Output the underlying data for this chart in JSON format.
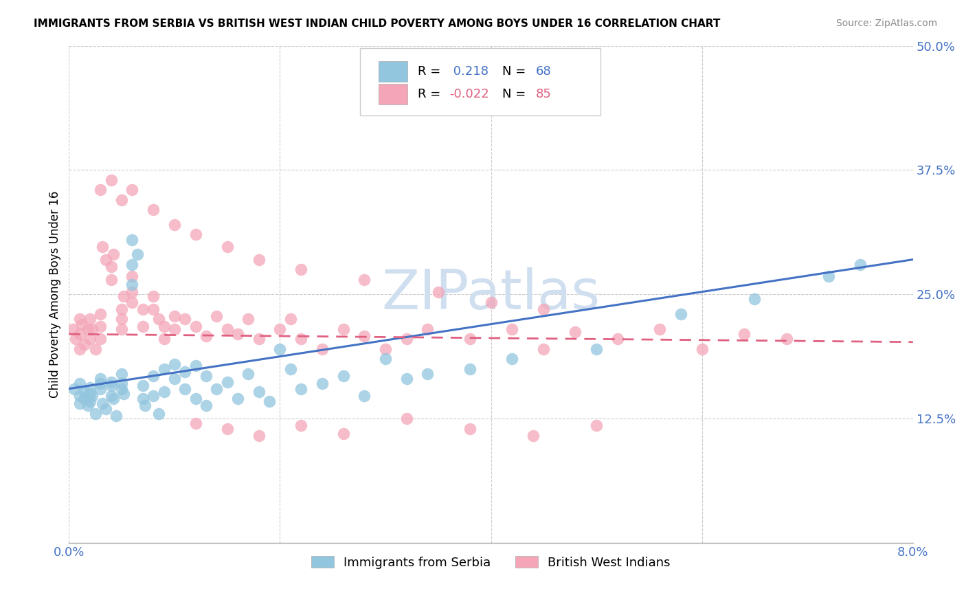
{
  "title": "IMMIGRANTS FROM SERBIA VS BRITISH WEST INDIAN CHILD POVERTY AMONG BOYS UNDER 16 CORRELATION CHART",
  "source": "Source: ZipAtlas.com",
  "ylabel": "Child Poverty Among Boys Under 16",
  "xlim": [
    0.0,
    0.08
  ],
  "ylim": [
    0.0,
    0.5
  ],
  "xticks": [
    0.0,
    0.02,
    0.04,
    0.06,
    0.08
  ],
  "xticklabels": [
    "0.0%",
    "",
    "",
    "",
    "8.0%"
  ],
  "yticks": [
    0.0,
    0.125,
    0.25,
    0.375,
    0.5
  ],
  "yticklabels": [
    "",
    "12.5%",
    "25.0%",
    "37.5%",
    "50.0%"
  ],
  "serbia_color": "#92c5de",
  "bwi_color": "#f4a6b8",
  "serbia_line_color": "#4472c4",
  "bwi_line_color": "#e06080",
  "serbia_R": 0.218,
  "serbia_N": 68,
  "bwi_R": -0.022,
  "bwi_N": 85,
  "watermark": "ZIPatlas",
  "watermark_color": "#d0dff0",
  "legend_label_serbia": "Immigrants from Serbia",
  "legend_label_bwi": "British West Indians",
  "serbia_line_y0": 0.155,
  "serbia_line_y1": 0.285,
  "bwi_line_y0": 0.21,
  "bwi_line_y1": 0.202,
  "serbia_scatter_x": [
    0.0005,
    0.001,
    0.001,
    0.001,
    0.0015,
    0.0015,
    0.0018,
    0.002,
    0.002,
    0.002,
    0.0022,
    0.0025,
    0.003,
    0.003,
    0.003,
    0.0032,
    0.0035,
    0.004,
    0.004,
    0.004,
    0.0042,
    0.0045,
    0.005,
    0.005,
    0.005,
    0.0052,
    0.006,
    0.006,
    0.006,
    0.0065,
    0.007,
    0.007,
    0.0072,
    0.008,
    0.008,
    0.0085,
    0.009,
    0.009,
    0.01,
    0.01,
    0.011,
    0.011,
    0.012,
    0.012,
    0.013,
    0.013,
    0.014,
    0.015,
    0.016,
    0.017,
    0.018,
    0.019,
    0.02,
    0.021,
    0.022,
    0.024,
    0.026,
    0.028,
    0.03,
    0.032,
    0.034,
    0.038,
    0.042,
    0.05,
    0.058,
    0.065,
    0.072,
    0.075
  ],
  "serbia_scatter_y": [
    0.155,
    0.14,
    0.16,
    0.148,
    0.152,
    0.145,
    0.138,
    0.15,
    0.142,
    0.156,
    0.148,
    0.13,
    0.165,
    0.155,
    0.16,
    0.14,
    0.135,
    0.162,
    0.158,
    0.148,
    0.145,
    0.128,
    0.155,
    0.16,
    0.17,
    0.15,
    0.305,
    0.28,
    0.26,
    0.29,
    0.158,
    0.145,
    0.138,
    0.168,
    0.148,
    0.13,
    0.175,
    0.152,
    0.18,
    0.165,
    0.172,
    0.155,
    0.178,
    0.145,
    0.168,
    0.138,
    0.155,
    0.162,
    0.145,
    0.17,
    0.152,
    0.142,
    0.195,
    0.175,
    0.155,
    0.16,
    0.168,
    0.148,
    0.185,
    0.165,
    0.17,
    0.175,
    0.185,
    0.195,
    0.23,
    0.245,
    0.268,
    0.28
  ],
  "bwi_scatter_x": [
    0.0004,
    0.0006,
    0.001,
    0.001,
    0.001,
    0.0012,
    0.0015,
    0.0018,
    0.002,
    0.002,
    0.0022,
    0.0025,
    0.003,
    0.003,
    0.003,
    0.0032,
    0.0035,
    0.004,
    0.004,
    0.0042,
    0.005,
    0.005,
    0.005,
    0.0052,
    0.006,
    0.006,
    0.006,
    0.007,
    0.007,
    0.008,
    0.008,
    0.0085,
    0.009,
    0.009,
    0.01,
    0.01,
    0.011,
    0.012,
    0.013,
    0.014,
    0.015,
    0.016,
    0.017,
    0.018,
    0.02,
    0.021,
    0.022,
    0.024,
    0.026,
    0.028,
    0.03,
    0.032,
    0.034,
    0.038,
    0.042,
    0.045,
    0.048,
    0.052,
    0.056,
    0.06,
    0.064,
    0.068,
    0.003,
    0.004,
    0.005,
    0.006,
    0.008,
    0.01,
    0.012,
    0.015,
    0.018,
    0.022,
    0.028,
    0.035,
    0.04,
    0.045,
    0.012,
    0.015,
    0.018,
    0.022,
    0.026,
    0.032,
    0.038,
    0.044,
    0.05
  ],
  "bwi_scatter_y": [
    0.215,
    0.205,
    0.225,
    0.195,
    0.21,
    0.22,
    0.2,
    0.215,
    0.225,
    0.205,
    0.215,
    0.195,
    0.23,
    0.218,
    0.205,
    0.298,
    0.285,
    0.278,
    0.265,
    0.29,
    0.235,
    0.225,
    0.215,
    0.248,
    0.268,
    0.252,
    0.242,
    0.235,
    0.218,
    0.248,
    0.235,
    0.225,
    0.205,
    0.218,
    0.228,
    0.215,
    0.225,
    0.218,
    0.208,
    0.228,
    0.215,
    0.21,
    0.225,
    0.205,
    0.215,
    0.225,
    0.205,
    0.195,
    0.215,
    0.208,
    0.195,
    0.205,
    0.215,
    0.205,
    0.215,
    0.195,
    0.212,
    0.205,
    0.215,
    0.195,
    0.21,
    0.205,
    0.355,
    0.365,
    0.345,
    0.355,
    0.335,
    0.32,
    0.31,
    0.298,
    0.285,
    0.275,
    0.265,
    0.252,
    0.242,
    0.235,
    0.12,
    0.115,
    0.108,
    0.118,
    0.11,
    0.125,
    0.115,
    0.108,
    0.118
  ]
}
